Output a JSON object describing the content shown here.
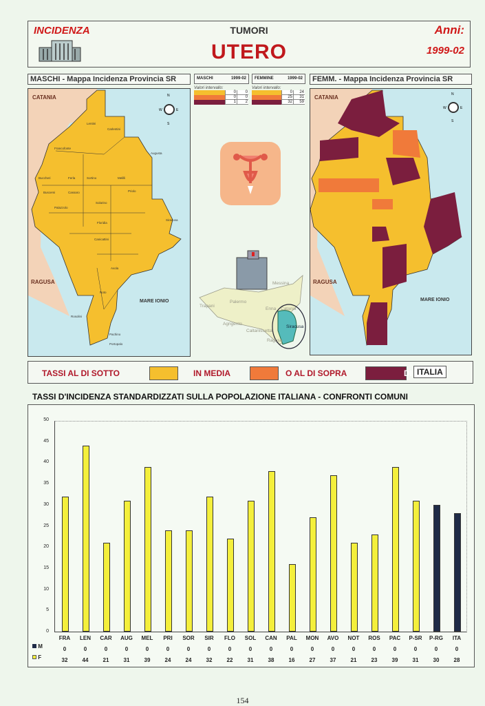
{
  "header": {
    "left": "INCIDENZA",
    "top": "TUMORI",
    "title": "UTERO",
    "anni_label": "Anni:",
    "years": "1999-02"
  },
  "male_panel": {
    "title": "MASCHI - Mappa Incidenza Provincia SR",
    "north": "CATANIA",
    "south": "RAGUSA",
    "sea": "MARE IONIO"
  },
  "female_panel": {
    "title": "FEMM. - Mappa Incidenza Provincia SR",
    "north": "CATANIA",
    "south": "RAGUSA",
    "sea": "MARE IONIO"
  },
  "compass": {
    "n": "N",
    "s": "S",
    "e": "E",
    "w": "W"
  },
  "towns": [
    "Lentini",
    "Carlentini",
    "Francofonte",
    "Augusta",
    "Buccheri",
    "Ferla",
    "Sortino",
    "Melilli",
    "Buscemi",
    "Cassaro",
    "Priolo",
    "Solarino",
    "Palazzolo",
    "Floridia",
    "Siracusa",
    "Canicattini",
    "Avola",
    "Noto",
    "Rosolini",
    "Pachino",
    "Portopalo"
  ],
  "legend_m": {
    "label": "MASCHI",
    "years": "1999-02",
    "caption": "Valori intervallo:",
    "rows": [
      [
        "0",
        "0"
      ],
      [
        "0",
        "0"
      ],
      [
        "1",
        "2"
      ]
    ]
  },
  "legend_f": {
    "label": "FEMMINE",
    "years": "1999-02",
    "caption": "Valori intervallo:",
    "rows": [
      [
        "0",
        "24"
      ],
      [
        "25",
        "31"
      ],
      [
        "32",
        "59"
      ]
    ]
  },
  "sicily": [
    "Messina",
    "Palermo",
    "Trapani",
    "Enna",
    "Catania",
    "Agrigento",
    "Caltanissetta",
    "Siracusa",
    "Ragusa"
  ],
  "legend_bar": {
    "t1": "TASSI AL DI SOTTO",
    "t2": "IN MEDIA",
    "t3": "O AL DI SOPRA",
    "t4": "DI",
    "t5": "ITALIA"
  },
  "colors": {
    "low": "#f5bf2e",
    "mid": "#f07a3a",
    "high": "#7b1e3e",
    "bar_f": "#f4ef3c",
    "bar_ref": "#1f2b47",
    "sea": "#c9e9ee",
    "land": "#f3d3b8"
  },
  "chart_data": {
    "type": "bar",
    "title": "TASSI D'INCIDENZA STANDARDIZZATI SULLA POPOLAZIONE ITALIANA - CONFRONTI COMUNI",
    "categories": [
      "FRA",
      "LEN",
      "CAR",
      "AUG",
      "MEL",
      "PRI",
      "SOR",
      "SIR",
      "FLO",
      "SOL",
      "CAN",
      "PAL",
      "MON",
      "AVO",
      "NOT",
      "ROS",
      "PAC",
      "P-SR",
      "P-RG",
      "ITA"
    ],
    "series": [
      {
        "name": "M",
        "values": [
          0,
          0,
          0,
          0,
          0,
          0,
          0,
          0,
          0,
          0,
          0,
          0,
          0,
          0,
          0,
          0,
          0,
          0,
          0,
          0
        ]
      },
      {
        "name": "F",
        "values": [
          32,
          44,
          21,
          31,
          39,
          24,
          24,
          32,
          22,
          31,
          38,
          16,
          27,
          37,
          21,
          23,
          39,
          31,
          30,
          28
        ]
      }
    ],
    "ylim": [
      0,
      50
    ],
    "yticks": [
      "0",
      "5",
      "10",
      "15",
      "20",
      "25",
      "30",
      "35",
      "40",
      "45",
      "50"
    ],
    "xlabel": "",
    "ylabel": "",
    "legend": "bottom-left table"
  },
  "page_number": "154"
}
